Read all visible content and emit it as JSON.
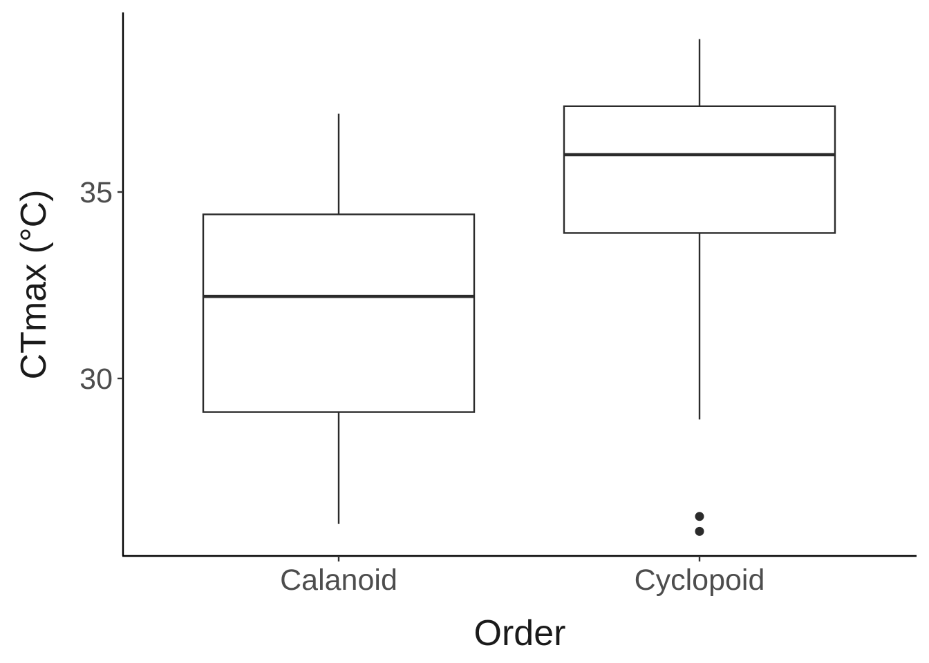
{
  "chart_data": {
    "type": "box",
    "title": "",
    "xlabel": "Order",
    "ylabel": "CTmax (°C)",
    "categories": [
      "Calanoid",
      "Cyclopoid"
    ],
    "ylim": [
      25.3,
      39.8
    ],
    "yticks": [
      30,
      35
    ],
    "grid": false,
    "legend": "none",
    "colors": {
      "box_stroke": "#2b2b2b",
      "axis": "#000000",
      "tick_text": "#4d4d4d",
      "title_text": "#1a1a1a"
    },
    "boxes": [
      {
        "name": "Calanoid",
        "whisker_low": 26.1,
        "q1": 29.1,
        "median": 32.2,
        "q3": 34.4,
        "whisker_high": 37.1,
        "outliers": []
      },
      {
        "name": "Cyclopoid",
        "whisker_low": 28.9,
        "q1": 33.9,
        "median": 36.0,
        "q3": 37.3,
        "whisker_high": 39.1,
        "outliers": [
          26.3,
          25.9
        ]
      }
    ]
  }
}
